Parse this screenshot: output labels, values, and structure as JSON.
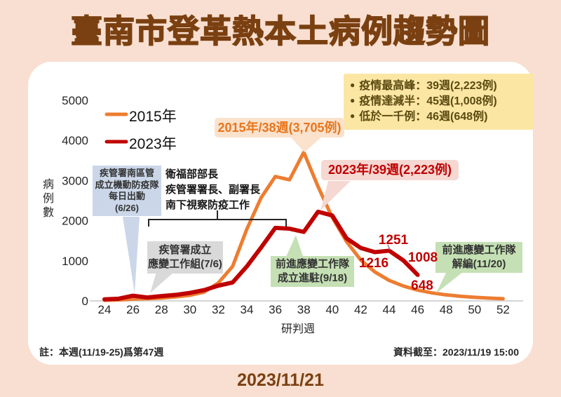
{
  "title": "臺南市登革熱本土病例趨勢圖",
  "date_footer": "2023/11/21",
  "info_box": {
    "bullet": "●",
    "items": [
      "疫情最高峰：39週(2,223例)",
      "疫情達減半：45週(1,008例)",
      "低於一千例：46週(648例)"
    ]
  },
  "legend": [
    {
      "label": "2015年",
      "color": "#ed7d31"
    },
    {
      "label": "2023年",
      "color": "#c00000"
    }
  ],
  "notes": {
    "left": "註：本週(11/19-25)爲第47週",
    "right": "資料截至：2023/11/19 15:00"
  },
  "annotations": {
    "blue_box": {
      "lines": [
        "疾管署南區管",
        "成立機動防疫隊",
        "每日出動",
        "(6/26)"
      ]
    },
    "moh_text": {
      "lines": [
        "衛福部部長",
        "疾管署署長、副署長",
        "南下視察防疫工作"
      ]
    },
    "gray_box": {
      "lines": [
        "疾管署成立",
        "應變工作組(7/6)"
      ]
    },
    "green_box_1": {
      "lines": [
        "前進應變工作隊",
        "成立進駐(9/18)"
      ]
    },
    "green_box_2": {
      "lines": [
        "前進應變工作隊",
        "解編(11/20)"
      ]
    },
    "callout_2015": "2015年/38週(3,705例)",
    "callout_2023": "2023年/39週(2,223例)",
    "point_labels": [
      "1251",
      "1216",
      "1008",
      "648"
    ]
  },
  "chart_data": {
    "type": "line",
    "title": "臺南市登革熱本土病例趨勢圖",
    "xlabel": "研判週",
    "ylabel": "病例數",
    "x_ticks": [
      24,
      26,
      28,
      30,
      32,
      34,
      36,
      38,
      40,
      42,
      44,
      46,
      48,
      50,
      52
    ],
    "y_ticks": [
      0,
      1000,
      2000,
      3000,
      4000,
      5000
    ],
    "xlim": [
      24,
      52
    ],
    "ylim": [
      0,
      5000
    ],
    "grid": false,
    "legend_position": "top-left",
    "series": [
      {
        "name": "2015年",
        "color": "#ed7d31",
        "x": [
          24,
          25,
          26,
          27,
          28,
          29,
          30,
          31,
          32,
          33,
          34,
          35,
          36,
          37,
          38,
          39,
          40,
          41,
          42,
          43,
          44,
          45,
          46,
          47,
          48,
          49,
          50,
          51,
          52
        ],
        "values": [
          15,
          25,
          45,
          55,
          70,
          100,
          140,
          220,
          450,
          860,
          1790,
          2570,
          3100,
          3020,
          3705,
          2850,
          2080,
          1480,
          1020,
          720,
          510,
          370,
          270,
          200,
          150,
          115,
          90,
          70,
          55
        ],
        "peak_annotation": {
          "week": 38,
          "value": 3705
        }
      },
      {
        "name": "2023年",
        "color": "#c00000",
        "x": [
          24,
          25,
          26,
          27,
          28,
          29,
          30,
          31,
          32,
          33,
          34,
          35,
          36,
          37,
          38,
          39,
          40,
          41,
          42,
          43,
          44,
          45,
          46
        ],
        "values": [
          40,
          55,
          130,
          85,
          120,
          150,
          200,
          270,
          380,
          460,
          860,
          1330,
          1820,
          1800,
          1720,
          2223,
          2130,
          1560,
          1320,
          1216,
          1251,
          1008,
          648
        ],
        "peak_annotation": {
          "week": 39,
          "value": 2223
        },
        "labeled_points": [
          {
            "week": 43,
            "value": 1216
          },
          {
            "week": 44,
            "value": 1251
          },
          {
            "week": 45,
            "value": 1008
          },
          {
            "week": 46,
            "value": 648
          }
        ]
      }
    ]
  }
}
